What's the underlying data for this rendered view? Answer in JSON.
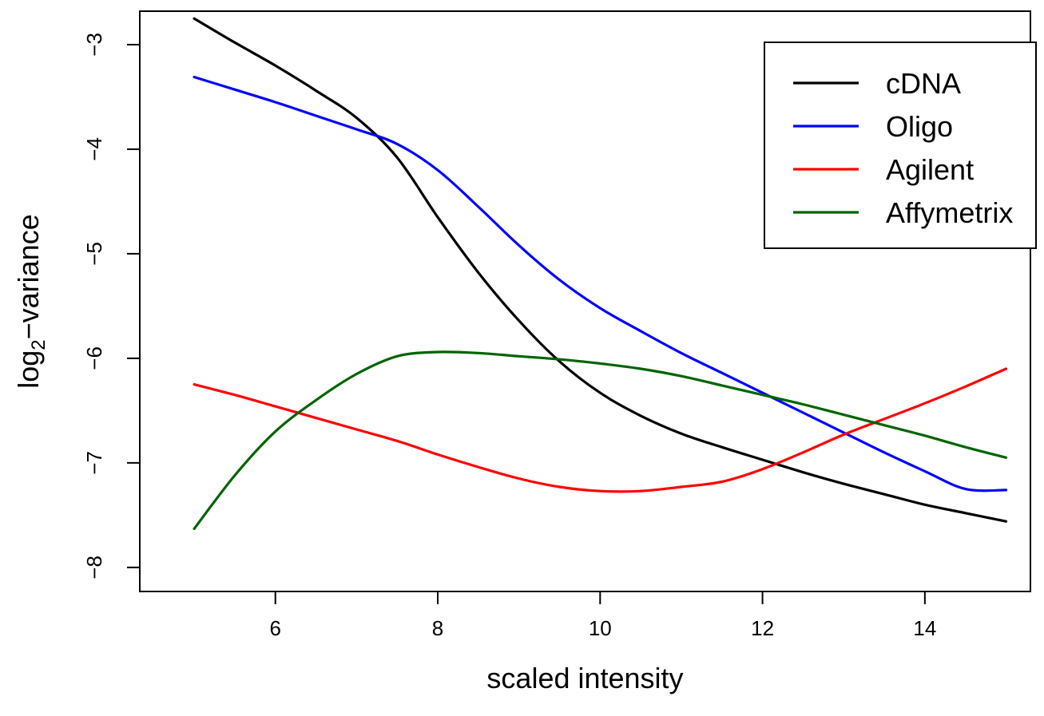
{
  "chart_data": {
    "type": "line",
    "title": "",
    "xlabel": "scaled intensity",
    "ylabel": {
      "prefix": "log",
      "subscript": "2",
      "suffix": "−variance"
    },
    "xlim": [
      4.33,
      15.3
    ],
    "ylim": [
      -8.23,
      -2.68
    ],
    "xticks": [
      6,
      8,
      10,
      12,
      14
    ],
    "yticks": [
      -8,
      -7,
      -6,
      -5,
      -4,
      -3
    ],
    "ytick_labels": [
      "−8",
      "−7",
      "−6",
      "−5",
      "−4",
      "−3"
    ],
    "grid": false,
    "legend": {
      "position": "top-right",
      "frame": true
    },
    "series": [
      {
        "name": "cDNA",
        "color": "#000000",
        "points": [
          [
            5,
            -2.75
          ],
          [
            5.5,
            -2.98
          ],
          [
            6,
            -3.2
          ],
          [
            6.5,
            -3.44
          ],
          [
            7,
            -3.7
          ],
          [
            7.5,
            -4.08
          ],
          [
            8,
            -4.65
          ],
          [
            8.5,
            -5.18
          ],
          [
            9,
            -5.64
          ],
          [
            9.5,
            -6.03
          ],
          [
            10,
            -6.33
          ],
          [
            10.5,
            -6.55
          ],
          [
            11,
            -6.72
          ],
          [
            11.5,
            -6.85
          ],
          [
            12,
            -6.97
          ],
          [
            12.5,
            -7.09
          ],
          [
            13,
            -7.2
          ],
          [
            13.5,
            -7.3
          ],
          [
            14,
            -7.4
          ],
          [
            14.5,
            -7.48
          ],
          [
            15,
            -7.56
          ]
        ]
      },
      {
        "name": "Oligo",
        "color": "#0000ff",
        "points": [
          [
            5,
            -3.31
          ],
          [
            5.5,
            -3.43
          ],
          [
            6,
            -3.55
          ],
          [
            6.5,
            -3.68
          ],
          [
            7,
            -3.81
          ],
          [
            7.5,
            -3.95
          ],
          [
            8,
            -4.2
          ],
          [
            8.5,
            -4.55
          ],
          [
            9,
            -4.92
          ],
          [
            9.5,
            -5.25
          ],
          [
            10,
            -5.52
          ],
          [
            10.5,
            -5.74
          ],
          [
            11,
            -5.95
          ],
          [
            11.5,
            -6.14
          ],
          [
            12,
            -6.33
          ],
          [
            12.5,
            -6.52
          ],
          [
            13,
            -6.71
          ],
          [
            13.5,
            -6.9
          ],
          [
            14,
            -7.08
          ],
          [
            14.5,
            -7.25
          ],
          [
            15,
            -7.26
          ]
        ]
      },
      {
        "name": "Agilent",
        "color": "#ff0000",
        "points": [
          [
            5,
            -6.25
          ],
          [
            5.5,
            -6.35
          ],
          [
            6,
            -6.46
          ],
          [
            6.5,
            -6.57
          ],
          [
            7,
            -6.68
          ],
          [
            7.5,
            -6.79
          ],
          [
            8,
            -6.92
          ],
          [
            8.5,
            -7.04
          ],
          [
            9,
            -7.15
          ],
          [
            9.5,
            -7.23
          ],
          [
            10,
            -7.27
          ],
          [
            10.5,
            -7.27
          ],
          [
            11,
            -7.23
          ],
          [
            11.5,
            -7.18
          ],
          [
            12,
            -7.06
          ],
          [
            12.5,
            -6.9
          ],
          [
            13,
            -6.73
          ],
          [
            13.5,
            -6.58
          ],
          [
            14,
            -6.43
          ],
          [
            14.5,
            -6.27
          ],
          [
            15,
            -6.1
          ]
        ]
      },
      {
        "name": "Affymetrix",
        "color": "#006400",
        "points": [
          [
            5,
            -7.63
          ],
          [
            5.5,
            -7.12
          ],
          [
            6,
            -6.7
          ],
          [
            6.5,
            -6.4
          ],
          [
            7,
            -6.15
          ],
          [
            7.5,
            -5.98
          ],
          [
            8,
            -5.94
          ],
          [
            8.5,
            -5.95
          ],
          [
            9,
            -5.98
          ],
          [
            9.5,
            -6.01
          ],
          [
            10,
            -6.05
          ],
          [
            10.5,
            -6.1
          ],
          [
            11,
            -6.17
          ],
          [
            11.5,
            -6.26
          ],
          [
            12,
            -6.35
          ],
          [
            12.5,
            -6.44
          ],
          [
            13,
            -6.54
          ],
          [
            13.5,
            -6.64
          ],
          [
            14,
            -6.74
          ],
          [
            14.5,
            -6.85
          ],
          [
            15,
            -6.95
          ]
        ]
      }
    ]
  }
}
